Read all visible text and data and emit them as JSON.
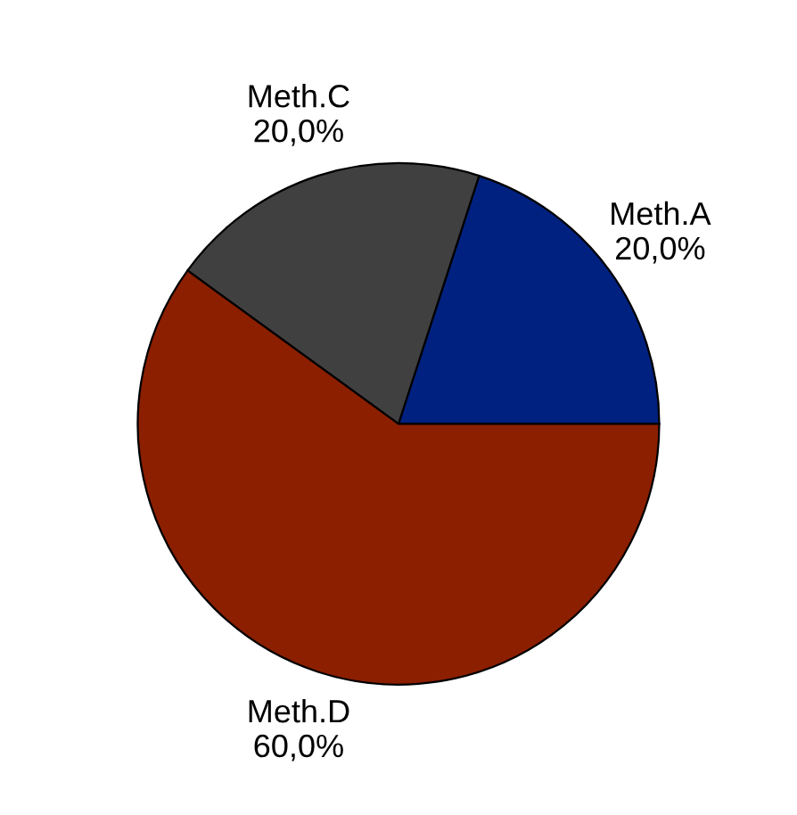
{
  "chart_data": {
    "type": "pie",
    "categories": [
      "Meth.A",
      "Meth.C",
      "Meth.D"
    ],
    "values": [
      20,
      20,
      60
    ],
    "value_labels": [
      "20,0%",
      "20,0%",
      "60,0%"
    ],
    "colors": [
      "#00217f",
      "#404040",
      "#8b1f00"
    ],
    "legend": false
  }
}
